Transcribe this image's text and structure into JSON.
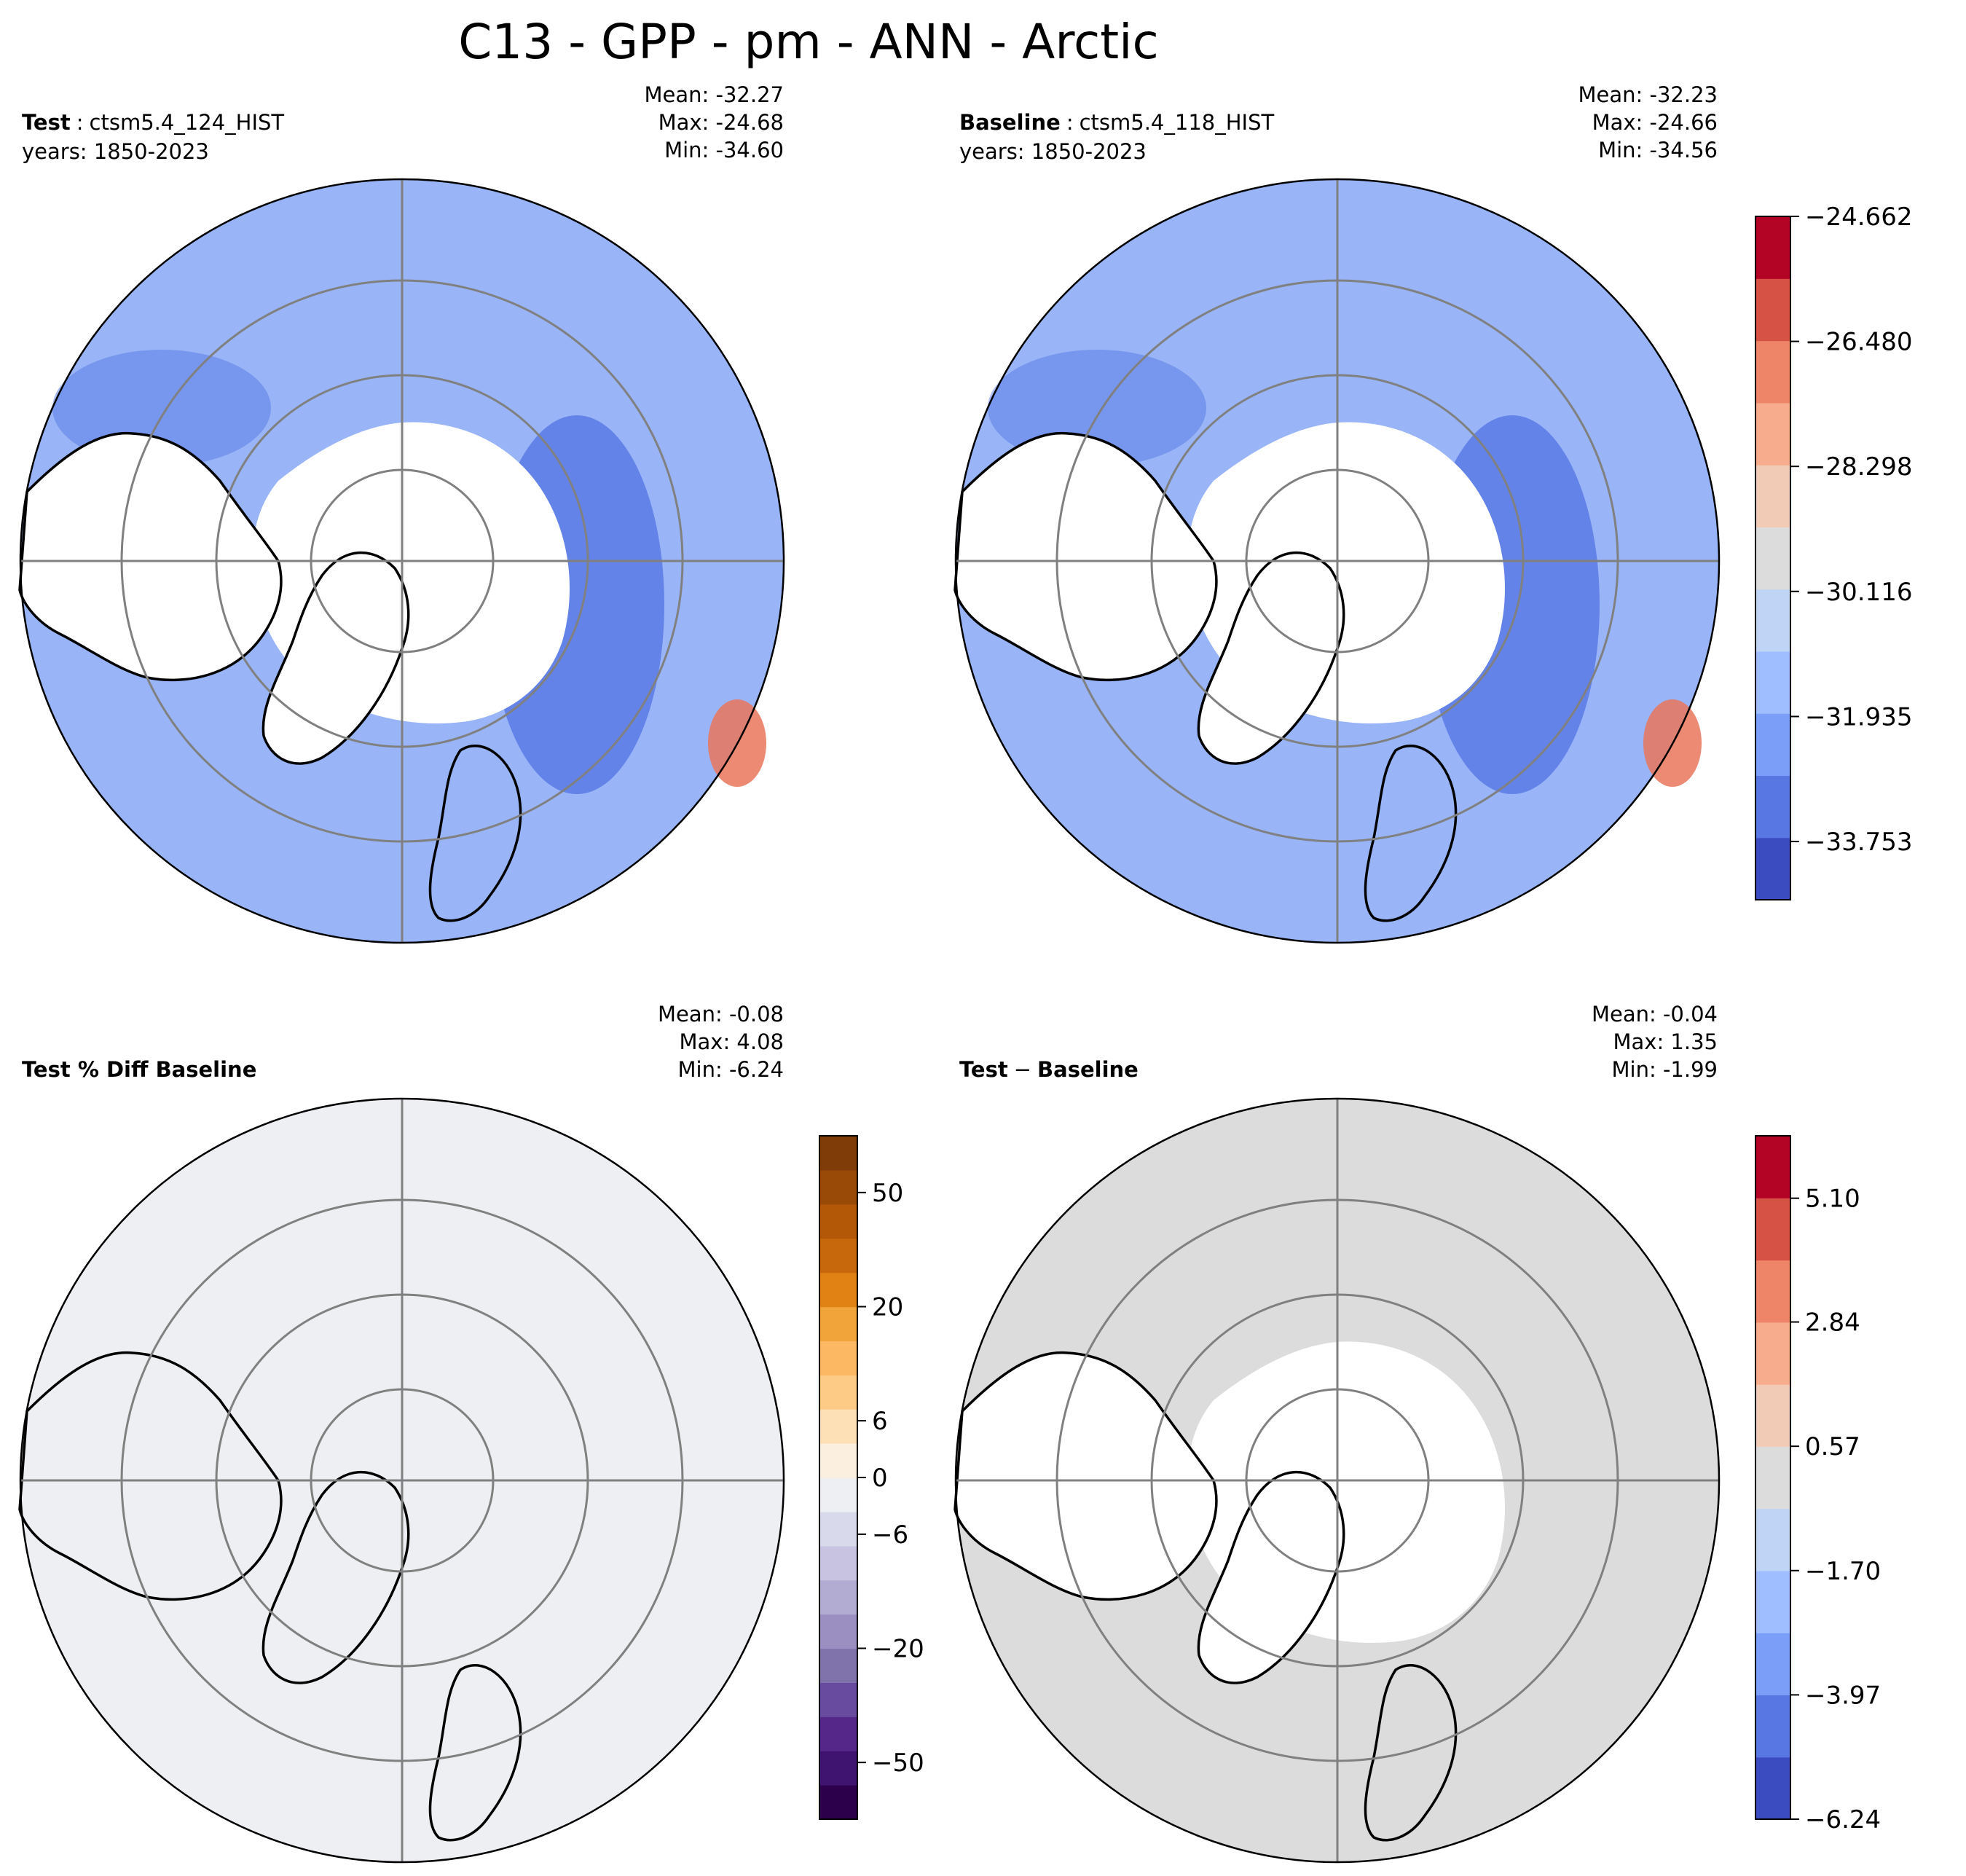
{
  "title": "C13 - GPP - pm - ANN - Arctic",
  "colors": {
    "land_mask": "#ffffff",
    "coast": "#000000",
    "grid": "#808080",
    "coolwarm_base": "#7f9ff2",
    "coolwarm_base2": "#aec6fb",
    "coolwarm_deep": "#5677e4",
    "pct_background": "#eeeff2",
    "diff_background": "#dcdcdc"
  },
  "chart_data": [
    {
      "type": "heatmap",
      "panel": "test",
      "label_bold": "Test",
      "label_sep": ":",
      "label_rest": "ctsm5.4_124_HIST",
      "years": "years: 1850-2023",
      "stats": {
        "mean": "Mean: -32.27",
        "max": "Max: -24.68",
        "min": "Min: -34.60"
      },
      "projection": "north polar stereographic"
    },
    {
      "type": "heatmap",
      "panel": "baseline",
      "label_bold": "Baseline",
      "label_sep": ":",
      "label_rest": "ctsm5.4_118_HIST",
      "years": "years: 1850-2023",
      "stats": {
        "mean": "Mean: -32.23",
        "max": "Max: -24.66",
        "min": "Min: -34.56"
      },
      "projection": "north polar stereographic",
      "colorbar": {
        "colormap": "coolwarm",
        "vmin": -34.6,
        "vmax": -24.662,
        "ticks": [
          -33.753,
          -31.935,
          -30.116,
          -28.298,
          -26.48,
          -24.662
        ],
        "tick_labels": [
          "−33.753",
          "−31.935",
          "−30.116",
          "−28.298",
          "−26.480",
          "−24.662"
        ],
        "levels": [
          "#3b4cc0",
          "#5977e3",
          "#7b9ff9",
          "#9ebeff",
          "#c0d4f5",
          "#dddcdc",
          "#f2cbb7",
          "#f7ac8e",
          "#ee8468",
          "#d65244",
          "#b40426"
        ]
      }
    },
    {
      "type": "heatmap",
      "panel": "percent_diff",
      "label_bold": "Test % Diff Baseline",
      "stats": {
        "mean": "Mean: -0.08",
        "max": "Max:  4.08",
        "min": "Min: -6.24"
      },
      "projection": "north polar stereographic",
      "colorbar": {
        "colormap": "PuOr_r",
        "ticks": [
          -50,
          -20,
          -6,
          0,
          6,
          20,
          50
        ],
        "tick_labels": [
          "−50",
          "−20",
          "−6",
          "0",
          "6",
          "20",
          "50"
        ],
        "levels": [
          "#2d004b",
          "#3f1370",
          "#542788",
          "#684b9e",
          "#8073ac",
          "#9b8fc1",
          "#b2abd2",
          "#c8c3e0",
          "#d8daeb",
          "#eeeff2",
          "#fbefe0",
          "#fee0b6",
          "#fdcb86",
          "#fdb863",
          "#f0a43a",
          "#e08214",
          "#c8680c",
          "#b35806",
          "#9a4a07",
          "#7f3b08"
        ]
      }
    },
    {
      "type": "heatmap",
      "panel": "difference",
      "label_bold": "Test",
      "label_sep": "−",
      "label_rest": "Baseline",
      "stats": {
        "mean": "Mean: -0.04",
        "max": "Max:  1.35",
        "min": "Min: -1.99"
      },
      "projection": "north polar stereographic",
      "colorbar": {
        "colormap": "coolwarm",
        "vmin": -6.24,
        "vmax": 6.24,
        "ticks": [
          -6.24,
          -3.97,
          -1.7,
          0.57,
          2.84,
          5.1
        ],
        "tick_labels": [
          "−6.24",
          "−3.97",
          "−1.70",
          "0.57",
          "2.84",
          "5.10"
        ],
        "levels": [
          "#3b4cc0",
          "#5977e3",
          "#7b9ff9",
          "#9ebeff",
          "#c0d4f5",
          "#dddcdc",
          "#f2cbb7",
          "#f7ac8e",
          "#ee8468",
          "#d65244",
          "#b40426"
        ]
      }
    }
  ]
}
